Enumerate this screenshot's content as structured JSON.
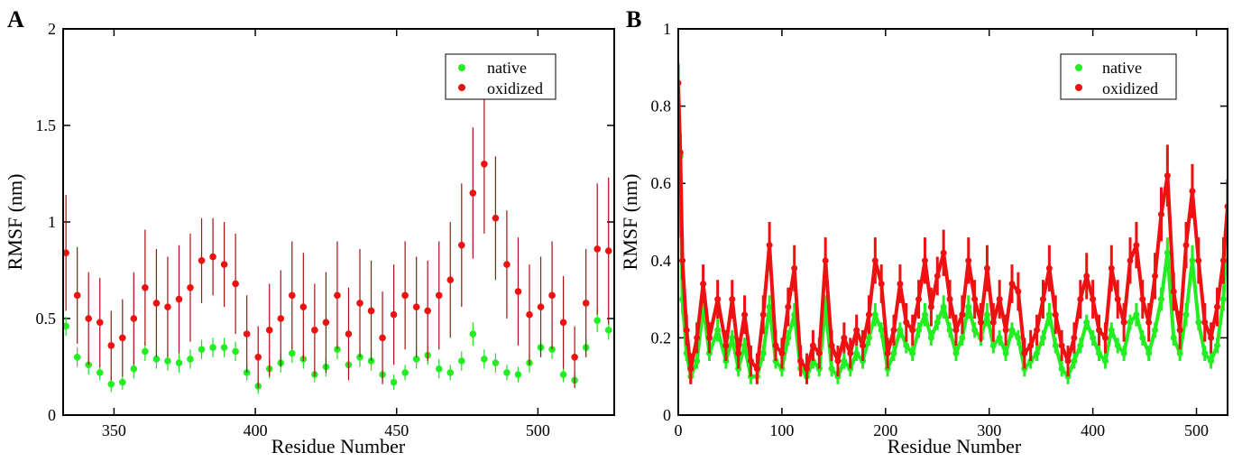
{
  "figure": {
    "panels": [
      "A",
      "B"
    ]
  },
  "chart_data": [
    {
      "type": "scatter",
      "panel": "A",
      "xlabel": "Residue Number",
      "ylabel": "RMSF (nm)",
      "xlim": [
        332,
        527
      ],
      "ylim": [
        0,
        2
      ],
      "xticks": [
        350,
        400,
        450,
        500
      ],
      "yticks": [
        0,
        0.5,
        1,
        1.5,
        2
      ],
      "ytick_labels": [
        "0",
        "0.5",
        "1",
        "1.5",
        "2"
      ],
      "legend_position": "top-right",
      "error_bars": true,
      "series": [
        {
          "name": "native",
          "color": "#22ee22",
          "errcolor": "#22dd22",
          "x": [
            333,
            337,
            341,
            345,
            349,
            353,
            357,
            361,
            365,
            369,
            373,
            377,
            381,
            385,
            389,
            393,
            397,
            401,
            405,
            409,
            413,
            417,
            421,
            425,
            429,
            433,
            437,
            441,
            445,
            449,
            453,
            457,
            461,
            465,
            469,
            473,
            477,
            481,
            485,
            489,
            493,
            497,
            501,
            505,
            509,
            513,
            517,
            521,
            525
          ],
          "y": [
            0.46,
            0.3,
            0.26,
            0.22,
            0.16,
            0.17,
            0.24,
            0.33,
            0.29,
            0.28,
            0.27,
            0.29,
            0.34,
            0.35,
            0.35,
            0.33,
            0.22,
            0.15,
            0.24,
            0.27,
            0.32,
            0.29,
            0.21,
            0.25,
            0.34,
            0.26,
            0.3,
            0.28,
            0.21,
            0.17,
            0.22,
            0.29,
            0.31,
            0.24,
            0.22,
            0.28,
            0.42,
            0.29,
            0.27,
            0.22,
            0.21,
            0.27,
            0.35,
            0.34,
            0.21,
            0.18,
            0.35,
            0.49,
            0.44
          ],
          "err": [
            0.05,
            0.05,
            0.05,
            0.04,
            0.04,
            0.04,
            0.05,
            0.05,
            0.05,
            0.05,
            0.05,
            0.05,
            0.05,
            0.05,
            0.05,
            0.05,
            0.04,
            0.04,
            0.05,
            0.05,
            0.05,
            0.05,
            0.04,
            0.05,
            0.05,
            0.05,
            0.05,
            0.05,
            0.04,
            0.04,
            0.04,
            0.05,
            0.05,
            0.05,
            0.04,
            0.05,
            0.06,
            0.05,
            0.05,
            0.04,
            0.04,
            0.05,
            0.05,
            0.05,
            0.04,
            0.04,
            0.05,
            0.06,
            0.05
          ]
        },
        {
          "name": "oxidized",
          "color": "#ee1111",
          "errcolor": "#aa1111",
          "x": [
            333,
            337,
            341,
            345,
            349,
            353,
            357,
            361,
            365,
            369,
            373,
            377,
            381,
            385,
            389,
            393,
            397,
            401,
            405,
            409,
            413,
            417,
            421,
            425,
            429,
            433,
            437,
            441,
            445,
            449,
            453,
            457,
            461,
            465,
            469,
            473,
            477,
            481,
            485,
            489,
            493,
            497,
            501,
            505,
            509,
            513,
            517,
            521,
            525
          ],
          "y": [
            0.84,
            0.62,
            0.5,
            0.48,
            0.36,
            0.4,
            0.5,
            0.66,
            0.58,
            0.56,
            0.6,
            0.66,
            0.8,
            0.82,
            0.78,
            0.68,
            0.42,
            0.3,
            0.44,
            0.5,
            0.62,
            0.56,
            0.44,
            0.48,
            0.62,
            0.42,
            0.58,
            0.54,
            0.4,
            0.52,
            0.62,
            0.56,
            0.54,
            0.62,
            0.7,
            0.88,
            1.15,
            1.3,
            1.02,
            0.78,
            0.64,
            0.52,
            0.56,
            0.62,
            0.48,
            0.3,
            0.58,
            0.86,
            0.85
          ],
          "err": [
            0.3,
            0.25,
            0.24,
            0.23,
            0.18,
            0.2,
            0.24,
            0.3,
            0.28,
            0.26,
            0.28,
            0.28,
            0.22,
            0.2,
            0.22,
            0.26,
            0.2,
            0.16,
            0.24,
            0.25,
            0.28,
            0.28,
            0.24,
            0.26,
            0.28,
            0.24,
            0.28,
            0.26,
            0.24,
            0.26,
            0.28,
            0.26,
            0.26,
            0.28,
            0.3,
            0.32,
            0.34,
            0.36,
            0.32,
            0.28,
            0.28,
            0.26,
            0.26,
            0.28,
            0.24,
            0.16,
            0.28,
            0.34,
            0.38
          ]
        }
      ]
    },
    {
      "type": "line",
      "panel": "B",
      "xlabel": "Residue Number",
      "ylabel": "RMSF (nm)",
      "xlim": [
        0,
        530
      ],
      "ylim": [
        0,
        1
      ],
      "xticks": [
        0,
        100,
        200,
        300,
        400,
        500
      ],
      "yticks": [
        0,
        0.2,
        0.4,
        0.6,
        0.8,
        1
      ],
      "ytick_labels": [
        "0",
        "0.2",
        "0.4",
        "0.6",
        "0.8",
        "1"
      ],
      "legend_position": "top-right",
      "error_bars": true,
      "series": [
        {
          "name": "native",
          "color": "#22ee22",
          "x": [
            0,
            2,
            4,
            8,
            12,
            18,
            24,
            30,
            38,
            46,
            52,
            58,
            64,
            70,
            76,
            82,
            88,
            94,
            100,
            106,
            112,
            118,
            124,
            130,
            136,
            142,
            148,
            154,
            160,
            166,
            172,
            178,
            184,
            190,
            196,
            202,
            208,
            214,
            220,
            226,
            232,
            238,
            244,
            250,
            256,
            262,
            268,
            274,
            280,
            286,
            292,
            298,
            304,
            310,
            316,
            322,
            328,
            334,
            340,
            346,
            352,
            358,
            364,
            370,
            376,
            382,
            388,
            394,
            400,
            406,
            412,
            418,
            424,
            430,
            436,
            442,
            448,
            454,
            460,
            466,
            472,
            478,
            484,
            490,
            496,
            502,
            508,
            514,
            520,
            526,
            530
          ],
          "y": [
            0.5,
            0.67,
            0.3,
            0.16,
            0.1,
            0.14,
            0.28,
            0.16,
            0.22,
            0.14,
            0.2,
            0.12,
            0.18,
            0.1,
            0.1,
            0.16,
            0.28,
            0.14,
            0.12,
            0.2,
            0.26,
            0.12,
            0.1,
            0.14,
            0.12,
            0.28,
            0.12,
            0.1,
            0.14,
            0.12,
            0.16,
            0.14,
            0.2,
            0.26,
            0.22,
            0.12,
            0.16,
            0.22,
            0.18,
            0.16,
            0.22,
            0.26,
            0.2,
            0.24,
            0.28,
            0.22,
            0.16,
            0.2,
            0.28,
            0.22,
            0.2,
            0.26,
            0.18,
            0.2,
            0.16,
            0.22,
            0.2,
            0.12,
            0.14,
            0.16,
            0.2,
            0.26,
            0.18,
            0.12,
            0.1,
            0.14,
            0.18,
            0.24,
            0.2,
            0.16,
            0.14,
            0.22,
            0.18,
            0.16,
            0.24,
            0.26,
            0.2,
            0.16,
            0.22,
            0.3,
            0.42,
            0.2,
            0.16,
            0.26,
            0.4,
            0.24,
            0.16,
            0.14,
            0.18,
            0.3,
            0.49
          ],
          "err": [
            0.04,
            0.04,
            0.04,
            0.02,
            0.02,
            0.02,
            0.03,
            0.02,
            0.03,
            0.02,
            0.02,
            0.02,
            0.02,
            0.02,
            0.02,
            0.02,
            0.03,
            0.02,
            0.02,
            0.02,
            0.03,
            0.02,
            0.02,
            0.02,
            0.02,
            0.03,
            0.02,
            0.02,
            0.02,
            0.02,
            0.02,
            0.02,
            0.02,
            0.03,
            0.02,
            0.02,
            0.02,
            0.02,
            0.02,
            0.02,
            0.02,
            0.03,
            0.02,
            0.02,
            0.03,
            0.02,
            0.02,
            0.02,
            0.03,
            0.02,
            0.02,
            0.03,
            0.02,
            0.02,
            0.02,
            0.02,
            0.02,
            0.02,
            0.02,
            0.02,
            0.02,
            0.03,
            0.02,
            0.02,
            0.02,
            0.02,
            0.02,
            0.02,
            0.02,
            0.02,
            0.02,
            0.02,
            0.02,
            0.02,
            0.02,
            0.03,
            0.02,
            0.02,
            0.02,
            0.03,
            0.04,
            0.02,
            0.02,
            0.03,
            0.04,
            0.02,
            0.02,
            0.02,
            0.02,
            0.03,
            0.04
          ]
        },
        {
          "name": "oxidized",
          "color": "#ee1111",
          "x": [
            0,
            2,
            4,
            8,
            12,
            18,
            24,
            30,
            38,
            46,
            52,
            58,
            64,
            70,
            76,
            82,
            88,
            94,
            100,
            106,
            112,
            118,
            124,
            130,
            136,
            142,
            148,
            154,
            160,
            166,
            172,
            178,
            184,
            190,
            196,
            202,
            208,
            214,
            220,
            226,
            232,
            238,
            244,
            250,
            256,
            262,
            268,
            274,
            280,
            286,
            292,
            298,
            304,
            310,
            316,
            322,
            328,
            334,
            340,
            346,
            352,
            358,
            364,
            370,
            376,
            382,
            388,
            394,
            400,
            406,
            412,
            418,
            424,
            430,
            436,
            442,
            448,
            454,
            460,
            466,
            472,
            478,
            484,
            490,
            496,
            502,
            508,
            514,
            520,
            526,
            530
          ],
          "y": [
            0.86,
            0.68,
            0.4,
            0.22,
            0.12,
            0.2,
            0.34,
            0.2,
            0.3,
            0.18,
            0.3,
            0.16,
            0.26,
            0.14,
            0.12,
            0.26,
            0.44,
            0.18,
            0.16,
            0.28,
            0.38,
            0.14,
            0.12,
            0.18,
            0.16,
            0.4,
            0.18,
            0.14,
            0.2,
            0.16,
            0.22,
            0.18,
            0.26,
            0.4,
            0.34,
            0.16,
            0.22,
            0.34,
            0.24,
            0.22,
            0.3,
            0.4,
            0.28,
            0.36,
            0.42,
            0.3,
            0.22,
            0.26,
            0.4,
            0.3,
            0.24,
            0.38,
            0.24,
            0.3,
            0.22,
            0.34,
            0.32,
            0.16,
            0.18,
            0.22,
            0.3,
            0.38,
            0.26,
            0.18,
            0.14,
            0.2,
            0.3,
            0.36,
            0.3,
            0.22,
            0.2,
            0.38,
            0.3,
            0.24,
            0.4,
            0.44,
            0.3,
            0.24,
            0.36,
            0.52,
            0.62,
            0.32,
            0.22,
            0.44,
            0.58,
            0.4,
            0.24,
            0.2,
            0.28,
            0.4,
            0.54
          ],
          "err": [
            0.05,
            0.05,
            0.05,
            0.04,
            0.04,
            0.04,
            0.05,
            0.04,
            0.05,
            0.04,
            0.05,
            0.04,
            0.05,
            0.04,
            0.04,
            0.05,
            0.06,
            0.04,
            0.04,
            0.05,
            0.06,
            0.04,
            0.04,
            0.04,
            0.04,
            0.06,
            0.04,
            0.04,
            0.04,
            0.04,
            0.04,
            0.04,
            0.05,
            0.06,
            0.05,
            0.04,
            0.04,
            0.05,
            0.05,
            0.04,
            0.05,
            0.06,
            0.05,
            0.05,
            0.06,
            0.05,
            0.04,
            0.05,
            0.06,
            0.05,
            0.05,
            0.06,
            0.05,
            0.05,
            0.04,
            0.05,
            0.05,
            0.04,
            0.04,
            0.04,
            0.05,
            0.06,
            0.05,
            0.04,
            0.04,
            0.04,
            0.05,
            0.06,
            0.05,
            0.04,
            0.04,
            0.06,
            0.05,
            0.05,
            0.06,
            0.06,
            0.05,
            0.05,
            0.06,
            0.07,
            0.08,
            0.05,
            0.05,
            0.06,
            0.07,
            0.06,
            0.05,
            0.04,
            0.05,
            0.06,
            0.07
          ]
        }
      ]
    }
  ]
}
